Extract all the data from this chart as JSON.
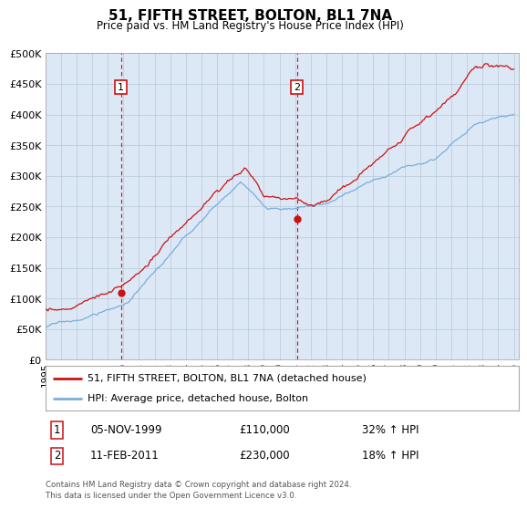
{
  "title": "51, FIFTH STREET, BOLTON, BL1 7NA",
  "subtitle": "Price paid vs. HM Land Registry's House Price Index (HPI)",
  "ytick_values": [
    0,
    50000,
    100000,
    150000,
    200000,
    250000,
    300000,
    350000,
    400000,
    450000,
    500000
  ],
  "x_start_year": 1995,
  "x_end_year": 2025,
  "marker1": {
    "date": "05-NOV-1999",
    "year": 1999.85,
    "price": 110000,
    "label": "1",
    "pct": "32% ↑ HPI"
  },
  "marker2": {
    "date": "11-FEB-2011",
    "year": 2011.12,
    "price": 230000,
    "label": "2",
    "pct": "18% ↑ HPI"
  },
  "legend_line1": "51, FIFTH STREET, BOLTON, BL1 7NA (detached house)",
  "legend_line2": "HPI: Average price, detached house, Bolton",
  "footnote": "Contains HM Land Registry data © Crown copyright and database right 2024.\nThis data is licensed under the Open Government Licence v3.0.",
  "hpi_color": "#7aaddb",
  "price_color": "#cc1111",
  "bg_color": "#dce8f5",
  "plot_bg": "#ffffff",
  "grid_color": "#b8c8d8",
  "vline_color": "#cc1111",
  "box_color": "#cc1111"
}
